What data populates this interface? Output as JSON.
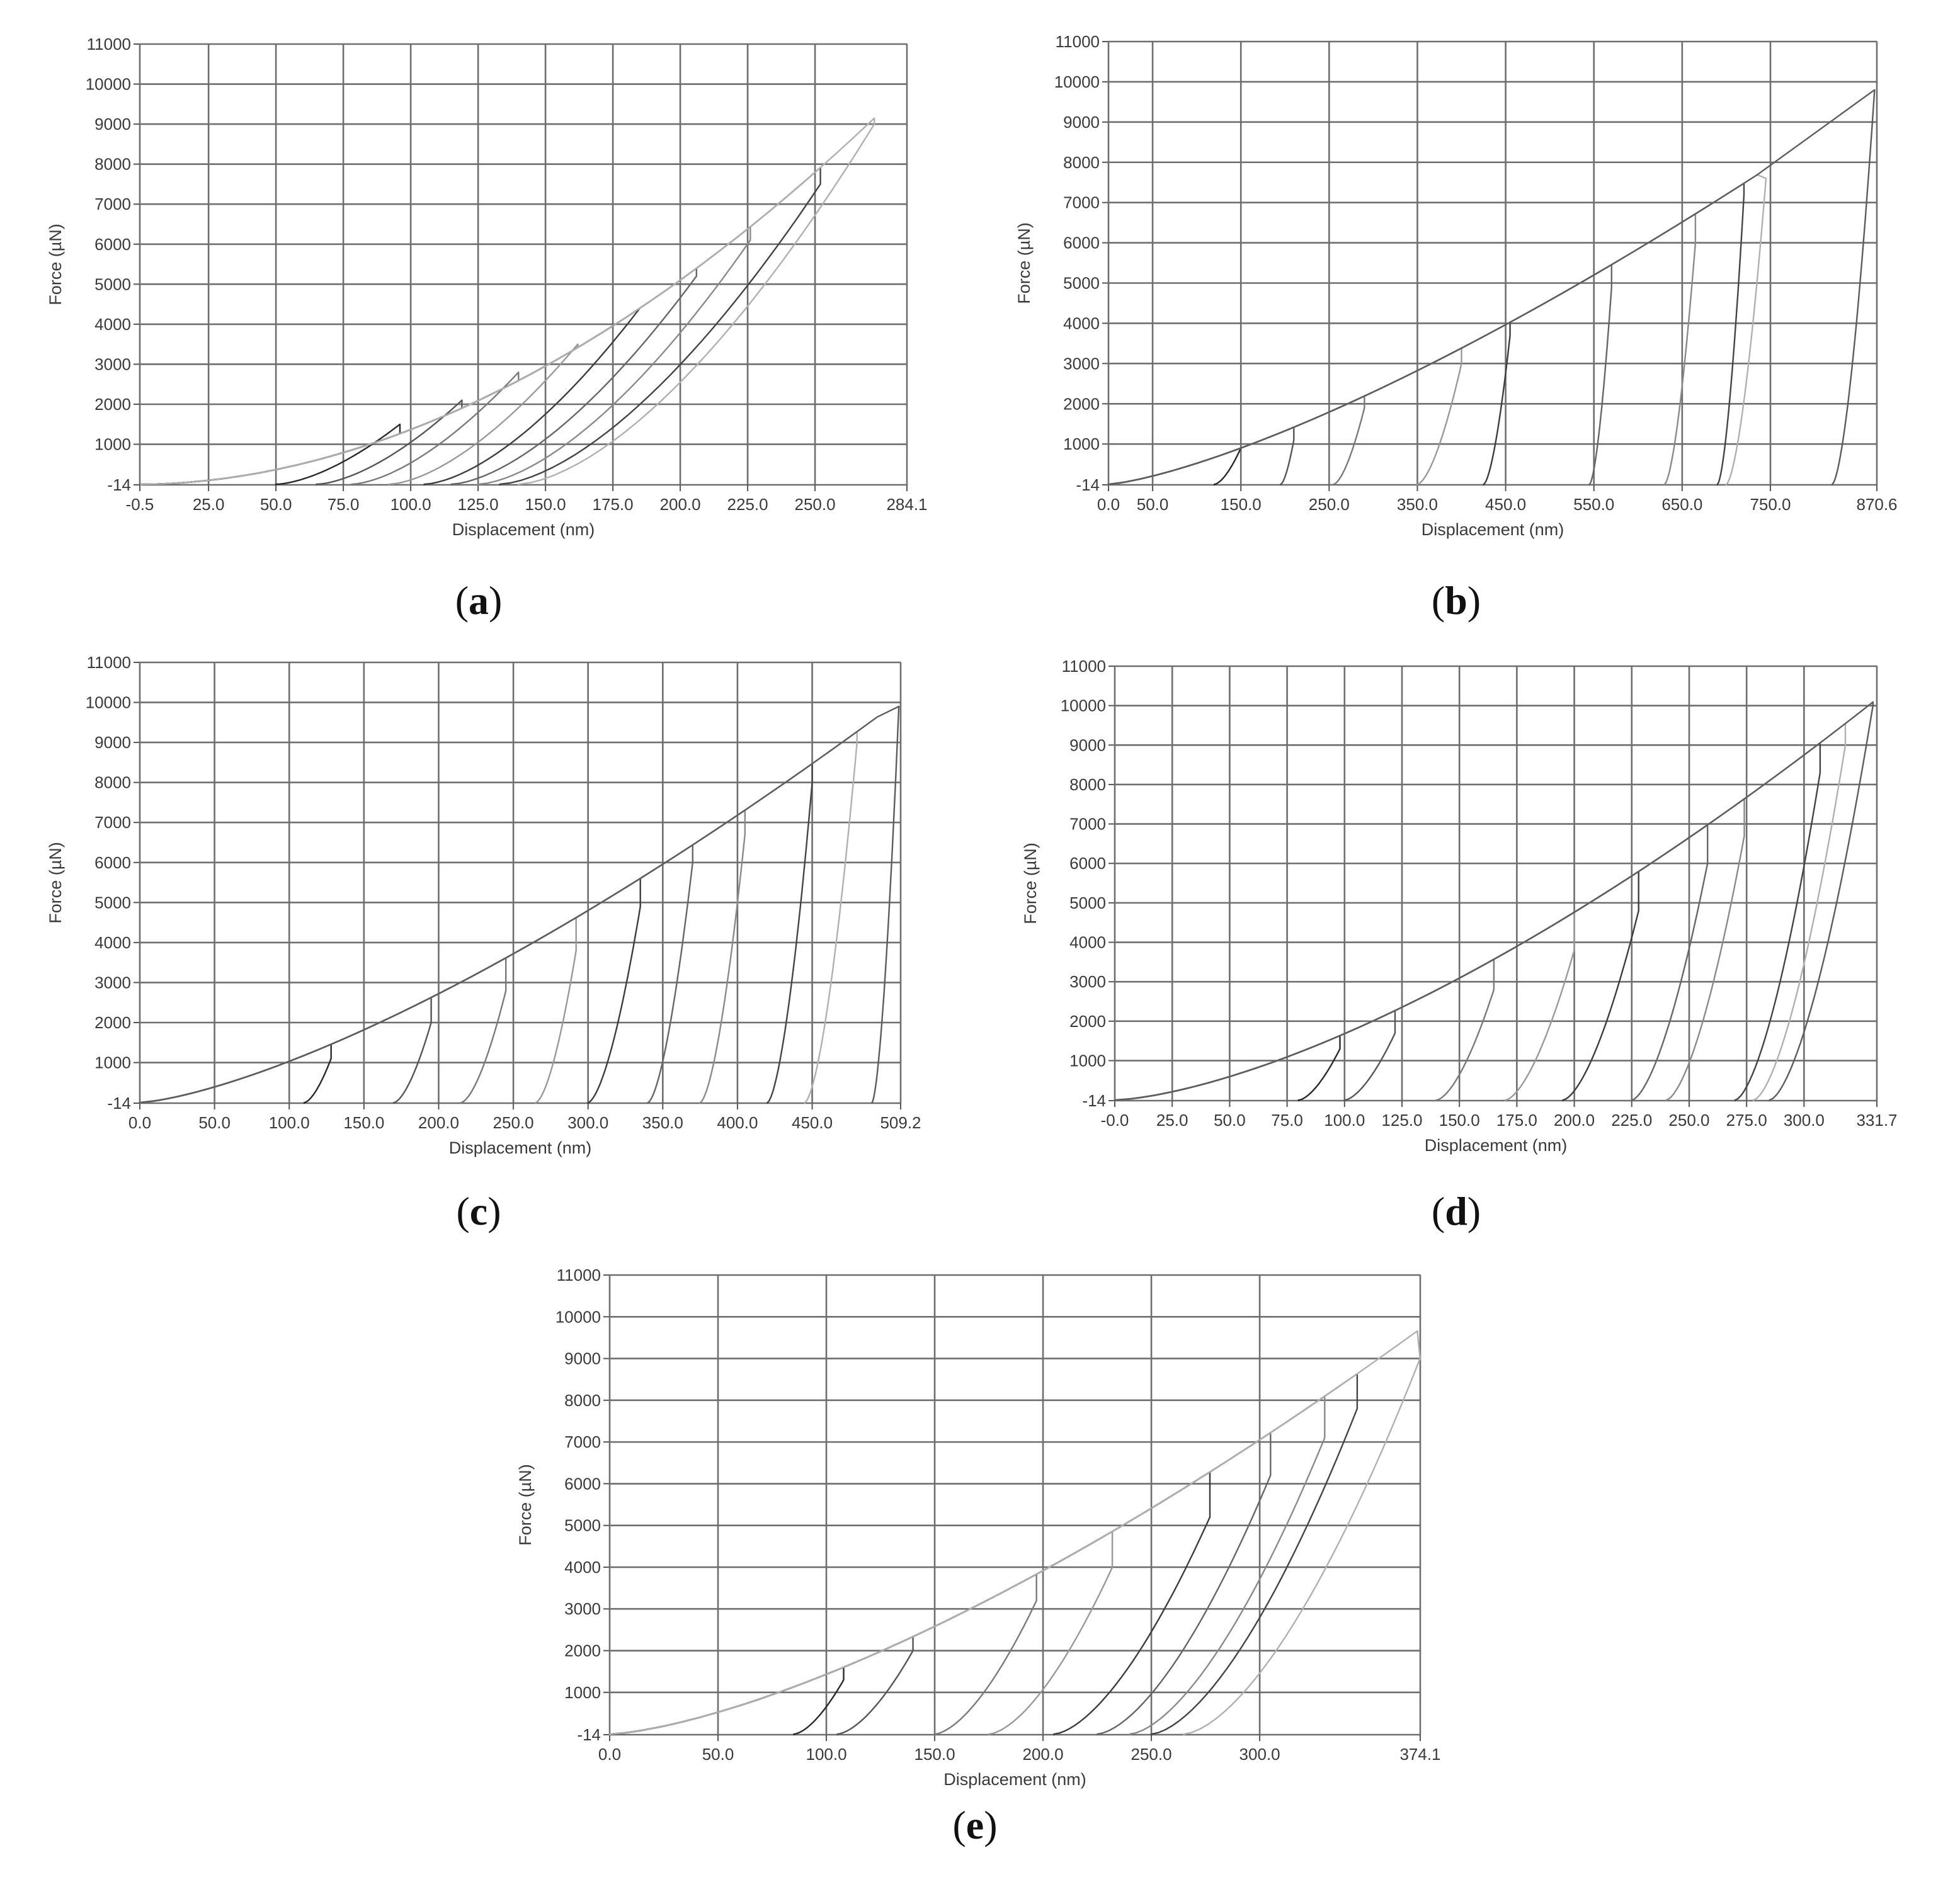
{
  "figure": {
    "colors": {
      "background": "#ffffff",
      "grid": "#6e6e6e",
      "text": "#3a3a3a"
    }
  },
  "chart_data": [
    {
      "id": "a",
      "type": "line",
      "panel_label": "a",
      "xlabel": "Displacement (nm)",
      "ylabel": "Force (µN)",
      "xlim": [
        -0.5,
        284.1
      ],
      "ylim": [
        -14,
        11000
      ],
      "x_ticks": [
        -0.5,
        25,
        50,
        75,
        100,
        125,
        150,
        175,
        200,
        225,
        250,
        284.1
      ],
      "x_tick_labels": [
        "-0.5",
        "25.0",
        "50.0",
        "75.0",
        "100.0",
        "125.0",
        "150.0",
        "175.0",
        "200.0",
        "225.0",
        "250.0",
        "284.1"
      ],
      "y_ticks": [
        -14,
        1000,
        2000,
        3000,
        4000,
        5000,
        6000,
        7000,
        8000,
        9000,
        10000,
        11000
      ],
      "y_tick_labels": [
        "-14",
        "1000",
        "2000",
        "3000",
        "4000",
        "5000",
        "6000",
        "7000",
        "8000",
        "9000",
        "10000",
        "11000"
      ],
      "grid": true,
      "loading_curve": {
        "x0": 0,
        "x_peak": 282,
        "y_peak": 9800,
        "exponent": 1.9
      },
      "cycles": [
        {
          "x_max": 96,
          "y_max": 1500,
          "x_residual": 50
        },
        {
          "x_max": 119,
          "y_max": 2100,
          "x_residual": 65
        },
        {
          "x_max": 140,
          "y_max": 2800,
          "x_residual": 78
        },
        {
          "x_max": 162,
          "y_max": 3500,
          "x_residual": 92
        },
        {
          "x_max": 185,
          "y_max": 4400,
          "x_residual": 105
        },
        {
          "x_max": 206,
          "y_max": 5200,
          "x_residual": 115
        },
        {
          "x_max": 226,
          "y_max": 6100,
          "x_residual": 125
        },
        {
          "x_max": 252,
          "y_max": 7500,
          "x_residual": 133
        },
        {
          "x_max": 272,
          "y_max": 9000,
          "x_residual": 140
        }
      ]
    },
    {
      "id": "b",
      "type": "line",
      "panel_label": "b",
      "xlabel": "Displacement (nm)",
      "ylabel": "Force (µN)",
      "xlim": [
        0,
        870.6
      ],
      "ylim": [
        -14,
        11000
      ],
      "x_ticks": [
        0,
        50,
        150,
        250,
        350,
        450,
        550,
        650,
        750,
        870.6
      ],
      "x_tick_labels": [
        "0.0",
        "50.0",
        "150.0",
        "250.0",
        "350.0",
        "450.0",
        "550.0",
        "650.0",
        "750.0",
        "870.6"
      ],
      "y_ticks": [
        -14,
        1000,
        2000,
        3000,
        4000,
        5000,
        6000,
        7000,
        8000,
        9000,
        10000,
        11000
      ],
      "y_tick_labels": [
        "-14",
        "1000",
        "2000",
        "3000",
        "4000",
        "5000",
        "6000",
        "7000",
        "8000",
        "9000",
        "10000",
        "11000"
      ],
      "grid": true,
      "loading_curve": {
        "x0": 0,
        "x_peak": 700,
        "y_peak": 7200,
        "exponent": 1.35
      },
      "cycles": [
        {
          "x_max": 150,
          "y_max": 900,
          "x_residual": 120
        },
        {
          "x_max": 210,
          "y_max": 1100,
          "x_residual": 195
        },
        {
          "x_max": 290,
          "y_max": 1900,
          "x_residual": 255
        },
        {
          "x_max": 400,
          "y_max": 3000,
          "x_residual": 350
        },
        {
          "x_max": 455,
          "y_max": 3700,
          "x_residual": 425
        },
        {
          "x_max": 570,
          "y_max": 4900,
          "x_residual": 545
        },
        {
          "x_max": 665,
          "y_max": 6000,
          "x_residual": 630
        },
        {
          "x_max": 720,
          "y_max": 7200,
          "x_residual": 690
        },
        {
          "x_max": 745,
          "y_max": 7600,
          "x_residual": 700
        },
        {
          "x_max": 868,
          "y_max": 9800,
          "x_residual": 820
        }
      ]
    },
    {
      "id": "c",
      "type": "line",
      "panel_label": "c",
      "xlabel": "Displacement (nm)",
      "ylabel": "Force (µN)",
      "xlim": [
        0,
        509.2
      ],
      "ylim": [
        -14,
        11000
      ],
      "x_ticks": [
        0,
        50,
        100,
        150,
        200,
        250,
        300,
        350,
        400,
        450,
        509.2
      ],
      "x_tick_labels": [
        "0.0",
        "50.0",
        "100.0",
        "150.0",
        "200.0",
        "250.0",
        "300.0",
        "350.0",
        "400.0",
        "450.0",
        "509.2"
      ],
      "y_ticks": [
        -14,
        1000,
        2000,
        3000,
        4000,
        5000,
        6000,
        7000,
        8000,
        9000,
        10000,
        11000
      ],
      "y_tick_labels": [
        "-14",
        "1000",
        "2000",
        "3000",
        "4000",
        "5000",
        "6000",
        "7000",
        "8000",
        "9000",
        "10000",
        "11000"
      ],
      "grid": true,
      "loading_curve": {
        "x0": 0,
        "x_peak": 470,
        "y_peak": 9000,
        "exponent": 1.4
      },
      "cycles": [
        {
          "x_max": 128,
          "y_max": 1100,
          "x_residual": 110
        },
        {
          "x_max": 195,
          "y_max": 2000,
          "x_residual": 170
        },
        {
          "x_max": 245,
          "y_max": 2800,
          "x_residual": 215
        },
        {
          "x_max": 292,
          "y_max": 3800,
          "x_residual": 265
        },
        {
          "x_max": 335,
          "y_max": 4900,
          "x_residual": 300
        },
        {
          "x_max": 370,
          "y_max": 6000,
          "x_residual": 340
        },
        {
          "x_max": 405,
          "y_max": 6700,
          "x_residual": 375
        },
        {
          "x_max": 450,
          "y_max": 8000,
          "x_residual": 420
        },
        {
          "x_max": 480,
          "y_max": 9000,
          "x_residual": 445
        },
        {
          "x_max": 508,
          "y_max": 9900,
          "x_residual": 490
        }
      ]
    },
    {
      "id": "d",
      "type": "line",
      "panel_label": "d",
      "xlabel": "Displacement (nm)",
      "ylabel": "Force (µN)",
      "xlim": [
        0,
        331.7
      ],
      "ylim": [
        -14,
        11000
      ],
      "x_ticks": [
        0,
        25,
        50,
        75,
        100,
        125,
        150,
        175,
        200,
        225,
        250,
        275,
        300,
        331.7
      ],
      "x_tick_labels": [
        "-0.0",
        "25.0",
        "50.0",
        "75.0",
        "100.0",
        "125.0",
        "150.0",
        "175.0",
        "200.0",
        "225.0",
        "250.0",
        "275.0",
        "300.0",
        "331.7"
      ],
      "y_ticks": [
        -14,
        1000,
        2000,
        3000,
        4000,
        5000,
        6000,
        7000,
        8000,
        9000,
        10000,
        11000
      ],
      "y_tick_labels": [
        "-14",
        "1000",
        "2000",
        "3000",
        "4000",
        "5000",
        "6000",
        "7000",
        "8000",
        "9000",
        "10000",
        "11000"
      ],
      "grid": true,
      "loading_curve": {
        "x0": 0,
        "x_peak": 328,
        "y_peak": 10000,
        "exponent": 1.5
      },
      "cycles": [
        {
          "x_max": 98,
          "y_max": 1300,
          "x_residual": 80
        },
        {
          "x_max": 122,
          "y_max": 1700,
          "x_residual": 100
        },
        {
          "x_max": 165,
          "y_max": 2800,
          "x_residual": 140
        },
        {
          "x_max": 200,
          "y_max": 3800,
          "x_residual": 170
        },
        {
          "x_max": 228,
          "y_max": 4800,
          "x_residual": 195
        },
        {
          "x_max": 258,
          "y_max": 6000,
          "x_residual": 225
        },
        {
          "x_max": 274,
          "y_max": 6700,
          "x_residual": 240
        },
        {
          "x_max": 307,
          "y_max": 8300,
          "x_residual": 270
        },
        {
          "x_max": 318,
          "y_max": 9000,
          "x_residual": 278
        },
        {
          "x_max": 330,
          "y_max": 10000,
          "x_residual": 285
        }
      ]
    },
    {
      "id": "e",
      "type": "line",
      "panel_label": "e",
      "xlabel": "Displacement (nm)",
      "ylabel": "Force (µN)",
      "xlim": [
        0,
        374.1
      ],
      "ylim": [
        -14,
        11000
      ],
      "x_ticks": [
        0,
        50,
        100,
        150,
        200,
        250,
        300,
        374.1
      ],
      "x_tick_labels": [
        "0.0",
        "50.0",
        "100.0",
        "150.0",
        "200.0",
        "250.0",
        "300.0",
        "374.1"
      ],
      "y_ticks": [
        -14,
        1000,
        2000,
        3000,
        4000,
        5000,
        6000,
        7000,
        8000,
        9000,
        10000,
        11000
      ],
      "y_tick_labels": [
        "-14",
        "1000",
        "2000",
        "3000",
        "4000",
        "5000",
        "6000",
        "7000",
        "8000",
        "9000",
        "10000",
        "11000"
      ],
      "grid": true,
      "loading_curve": {
        "x0": 0,
        "x_peak": 355,
        "y_peak": 9000,
        "exponent": 1.45
      },
      "cycles": [
        {
          "x_max": 108,
          "y_max": 1300,
          "x_residual": 85
        },
        {
          "x_max": 140,
          "y_max": 2000,
          "x_residual": 105
        },
        {
          "x_max": 197,
          "y_max": 3200,
          "x_residual": 150
        },
        {
          "x_max": 232,
          "y_max": 4000,
          "x_residual": 175
        },
        {
          "x_max": 277,
          "y_max": 5200,
          "x_residual": 205
        },
        {
          "x_max": 305,
          "y_max": 6200,
          "x_residual": 225
        },
        {
          "x_max": 330,
          "y_max": 7100,
          "x_residual": 240
        },
        {
          "x_max": 345,
          "y_max": 7800,
          "x_residual": 250
        },
        {
          "x_max": 374,
          "y_max": 9000,
          "x_residual": 265
        }
      ]
    }
  ]
}
